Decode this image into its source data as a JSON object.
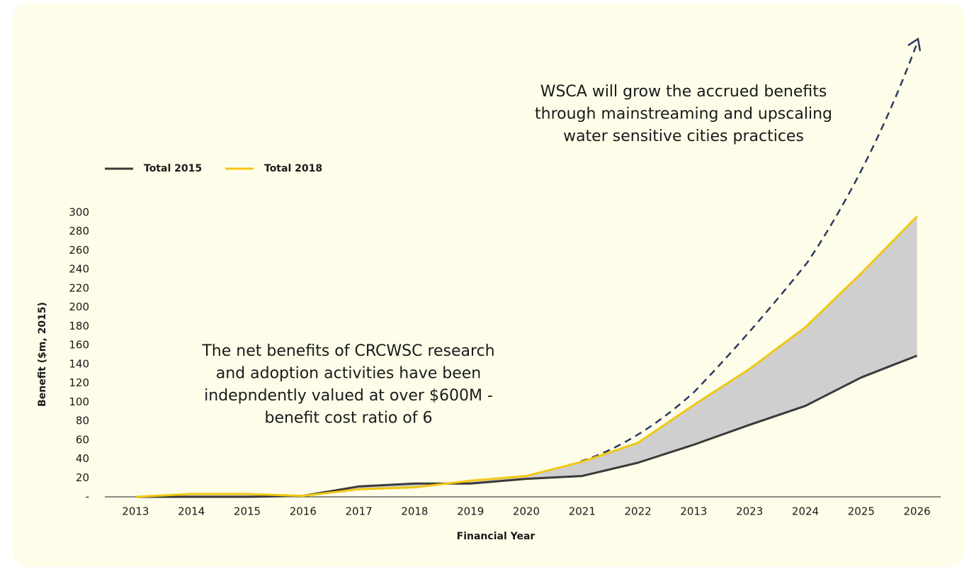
{
  "chart_data": {
    "type": "line",
    "annotations": [
      [
        "WSCA will grow the accrued benefits",
        "through mainstreaming and upscaling",
        "water sensitive cities practices"
      ],
      [
        "The net benefits of CRCWSC research",
        "and adoption activities have been",
        "indepndently valued at over $600M -",
        "benefit cost ratio of 6"
      ]
    ],
    "x_label": "Financial Year",
    "y_label": "Benefit ($m, 2015)",
    "categories": [
      "2013",
      "2014",
      "2015",
      "2016",
      "2017",
      "2018",
      "2019",
      "2020",
      "2021",
      "2022",
      "2013",
      "2023",
      "2024",
      "2025",
      "2026"
    ],
    "series": [
      {
        "name": "Total 2015",
        "color": "#3a3a3a",
        "values": [
          0,
          0,
          0,
          1,
          11,
          14,
          14,
          19,
          22,
          36,
          55,
          76,
          96,
          126,
          149
        ]
      },
      {
        "name": "Total 2018",
        "color": "#f2c811",
        "values": [
          0,
          3,
          3,
          1,
          8,
          10,
          17,
          22,
          37,
          57,
          97,
          135,
          179,
          236,
          296
        ]
      }
    ],
    "ylim": [
      0,
      300
    ],
    "yticks": [
      {
        "value": 0,
        "label": "-"
      },
      20,
      40,
      60,
      80,
      100,
      120,
      140,
      160,
      180,
      200,
      220,
      240,
      260,
      280,
      300
    ],
    "legend": "top-left"
  }
}
